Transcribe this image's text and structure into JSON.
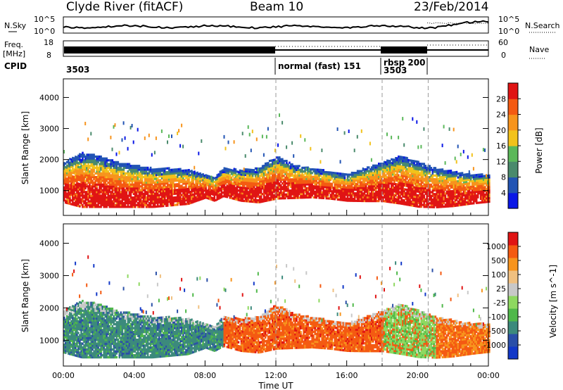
{
  "header": {
    "site_title": "Clyde River (fitACF)",
    "beam_label": "Beam 10",
    "date_label": "23/Feb/2014"
  },
  "top_panels": {
    "nsky_label": "N.Sky",
    "nsky_ticks": [
      "10^5",
      "10^0"
    ],
    "nsearch_label": "N.Search",
    "nsearch_ticks": [
      "10^5",
      "10^0"
    ],
    "freq_label": "Freq.",
    "freq_unit": "[MHz]",
    "freq_ticks": [
      "18",
      "8"
    ],
    "nave_label": "Nave",
    "nave_ticks": [
      "60",
      "0"
    ],
    "cpid_label": "CPID",
    "cpid_segments": [
      {
        "label": "3503",
        "start_hour": 0.0,
        "end_hour": 12.0
      },
      {
        "label": "normal (fast)  151",
        "start_hour": 12.0,
        "end_hour": 18.0
      },
      {
        "label": "rbsp  200",
        "start_hour": 18.0,
        "end_hour": 20.6
      },
      {
        "label": "3503",
        "start_hour": 18.0,
        "end_hour": 20.6
      }
    ]
  },
  "colors": {
    "power_scale": [
      "#0a17e6",
      "#2254b4",
      "#4a8a6c",
      "#5bb85a",
      "#f2c21b",
      "#f7941d",
      "#f45a12",
      "#e01414"
    ],
    "velocity_scale": [
      "#e01414",
      "#f45a12",
      "#f7941d",
      "#f0c080",
      "#c8c8c8",
      "#8ed860",
      "#4fb84a",
      "#3c8a7c",
      "#2a4fa8",
      "#1238c8"
    ]
  },
  "chart_data": [
    {
      "type": "heatmap",
      "title": "Power",
      "xlabel": "",
      "ylabel": "Slant Range [km]",
      "xlim_hours": [
        0,
        24
      ],
      "ylim_km": [
        200,
        4600
      ],
      "y_ticks": [
        "1000",
        "2000",
        "3000",
        "4000"
      ],
      "colorbar_label": "Power [dB]",
      "colorbar_ticks": [
        "4",
        "8",
        "12",
        "16",
        "20",
        "24",
        "28"
      ],
      "series": [
        {
          "name": "main scatter lower edge km",
          "x": [
            0,
            1,
            2,
            3,
            4,
            5,
            6,
            7,
            8,
            8.5,
            9,
            10,
            11,
            12,
            13,
            14,
            15,
            16,
            17,
            18,
            19,
            20,
            21,
            22,
            23,
            24
          ],
          "values": [
            600,
            450,
            450,
            450,
            450,
            450,
            500,
            550,
            750,
            650,
            800,
            650,
            600,
            720,
            740,
            760,
            720,
            650,
            640,
            640,
            560,
            460,
            440,
            480,
            560,
            620
          ]
        },
        {
          "name": "main scatter upper edge km",
          "x": [
            0,
            1,
            2,
            3,
            4,
            5,
            6,
            7,
            8,
            8.5,
            9,
            10,
            11,
            12,
            13,
            14,
            15,
            16,
            17,
            18,
            19,
            20,
            21,
            22,
            23,
            24
          ],
          "values": [
            1900,
            2200,
            2100,
            1900,
            1800,
            1700,
            1700,
            1650,
            1500,
            1400,
            1700,
            1650,
            1700,
            2100,
            1800,
            1700,
            1600,
            1500,
            1700,
            1900,
            2100,
            1900,
            1700,
            1600,
            1500,
            1500
          ]
        }
      ]
    },
    {
      "type": "heatmap",
      "title": "Velocity",
      "xlabel": "Time UT",
      "ylabel": "Slant Range [km]",
      "xlim_hours": [
        0,
        24
      ],
      "ylim_km": [
        200,
        4600
      ],
      "x_ticks": [
        "00:00",
        "04:00",
        "08:00",
        "12:00",
        "16:00",
        "20:00",
        "00:00"
      ],
      "y_ticks": [
        "1000",
        "2000",
        "3000",
        "4000"
      ],
      "colorbar_label": "Velocity [m s^-1]",
      "colorbar_ticks": [
        "1000",
        "500",
        "100",
        "25",
        "-25",
        "-100",
        "-500",
        "-1000"
      ]
    }
  ],
  "bottom_axis": {
    "xlabel": "Time UT",
    "x_ticks": [
      "00:00",
      "04:00",
      "08:00",
      "12:00",
      "16:00",
      "20:00",
      "00:00"
    ]
  }
}
